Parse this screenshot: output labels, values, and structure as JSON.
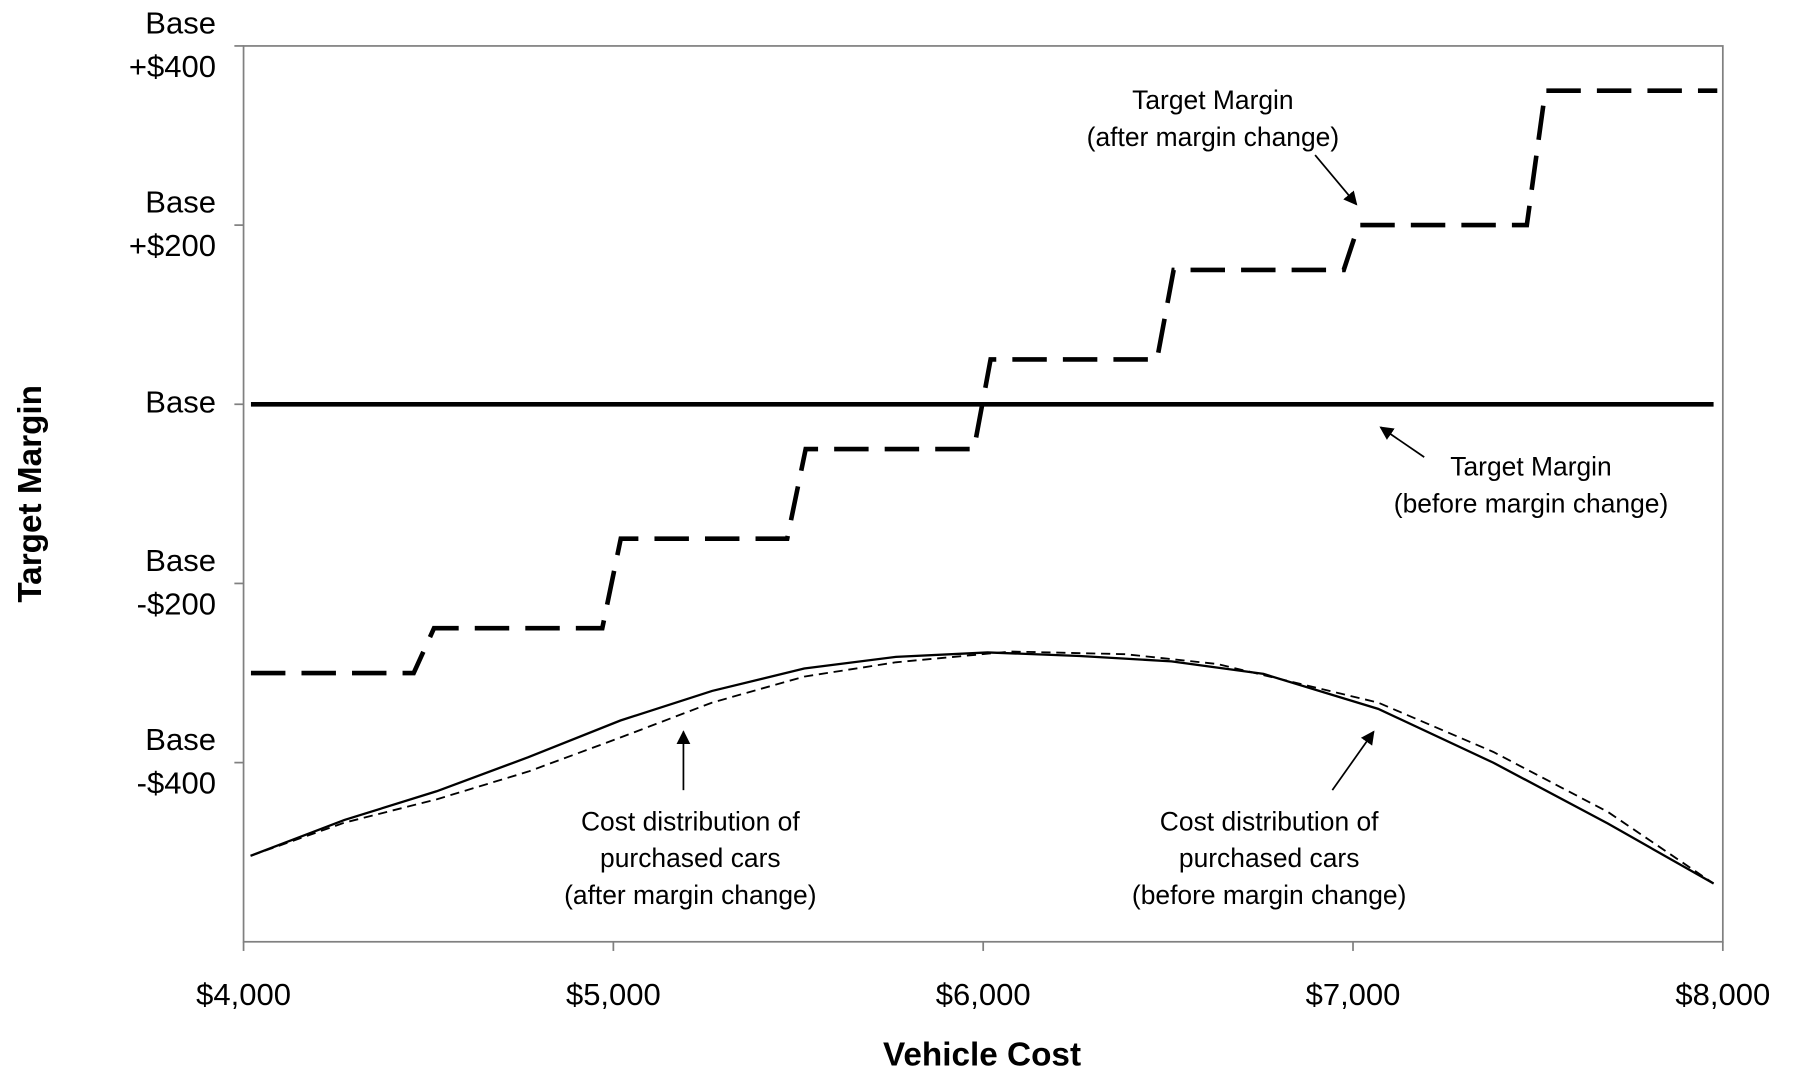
{
  "chart_data": {
    "type": "line",
    "x_label": "Vehicle Cost",
    "y_label": "Target Margin",
    "xlim": [
      4000,
      8000
    ],
    "xticks": [
      {
        "value": 4000,
        "label": "$4,000"
      },
      {
        "value": 5000,
        "label": "$5,000"
      },
      {
        "value": 6000,
        "label": "$6,000"
      },
      {
        "value": 7000,
        "label": "$7,000"
      },
      {
        "value": 8000,
        "label": "$8,000"
      }
    ],
    "ylim": [
      -600,
      400
    ],
    "yticks": [
      {
        "value": 400,
        "label": "Base +$400"
      },
      {
        "value": 200,
        "label": "Base +$200"
      },
      {
        "value": 0,
        "label": "Base"
      },
      {
        "value": -200,
        "label": "Base -$200"
      },
      {
        "value": -400,
        "label": "Base -$400"
      }
    ],
    "series": [
      {
        "name": "Target Margin (before margin change)",
        "color": "#000000",
        "style": "solid",
        "width": 4,
        "x": [
          4020,
          7975
        ],
        "values": [
          0,
          0
        ]
      },
      {
        "name": "Target Margin (after margin change)",
        "color": "#000000",
        "style": "dashed",
        "width": 4,
        "x": [
          4020,
          4460,
          4515,
          4970,
          5020,
          5470,
          5520,
          5975,
          6020,
          6470,
          6515,
          6975,
          7015,
          7470,
          7520,
          7985
        ],
        "values": [
          -300,
          -300,
          -250,
          -250,
          -150,
          -150,
          -50,
          -50,
          50,
          50,
          150,
          150,
          200,
          200,
          350,
          350
        ]
      },
      {
        "name": "Cost distribution of purchased cars (before margin change)",
        "color": "#000000",
        "style": "solid",
        "width": 2,
        "x": [
          4019,
          4273,
          4522,
          4770,
          5019,
          5267,
          5516,
          5764,
          6012,
          6261,
          6509,
          6758,
          7068,
          7379,
          7689,
          7975
        ],
        "values": [
          -504,
          -464,
          -432,
          -394,
          -353,
          -320,
          -295,
          -282,
          -277,
          -281,
          -287,
          -301,
          -340,
          -400,
          -468,
          -535
        ]
      },
      {
        "name": "Cost distribution of purchased cars (after margin change)",
        "color": "#000000",
        "style": "thin-dashed",
        "width": 1.6,
        "x": [
          4019,
          4273,
          4522,
          4770,
          5019,
          5267,
          5516,
          5764,
          6075,
          6385,
          6634,
          7068,
          7379,
          7689,
          7975
        ],
        "values": [
          -504,
          -467,
          -441,
          -410,
          -372,
          -333,
          -304,
          -288,
          -276,
          -279,
          -290,
          -333,
          -388,
          -455,
          -535
        ]
      }
    ],
    "annotations": [
      {
        "lines": [
          "Target Margin",
          "(after margin change)"
        ]
      },
      {
        "lines": [
          "Target Margin",
          "(before margin change)"
        ]
      },
      {
        "lines": [
          "Cost distribution of",
          "purchased cars",
          "(after margin change)"
        ]
      },
      {
        "lines": [
          "Cost distribution of",
          "purchased cars",
          "(before margin change)"
        ]
      }
    ]
  }
}
